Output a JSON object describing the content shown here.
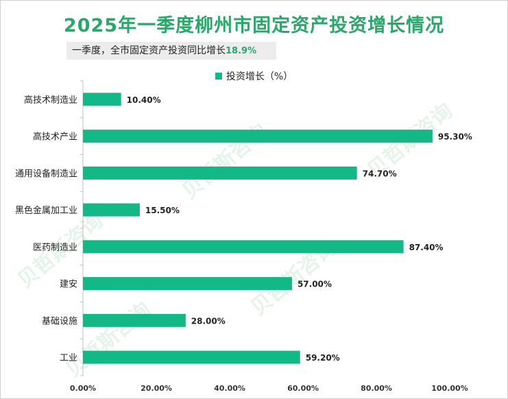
{
  "title": "2025年一季度柳州市固定资产投资增长情况",
  "subtitle": {
    "text": "一季度，全市固定资产投资同比增长",
    "value": "18.9%"
  },
  "watermark": "贝哲斯咨询",
  "colors": {
    "bar": "#12b886",
    "title": "#2aa86a",
    "axis": "#bfbfbf"
  },
  "chart_data": {
    "type": "bar",
    "orientation": "horizontal",
    "categories": [
      "高技术制造业",
      "高技术产业",
      "通用设备制造业",
      "黑色金属加工业",
      "医药制造业",
      "建安",
      "基础设施",
      "工业"
    ],
    "series": [
      {
        "name": "投资增长（%）",
        "values": [
          10.4,
          95.3,
          74.7,
          15.5,
          87.4,
          57.0,
          28.0,
          59.2
        ],
        "labels": [
          "10.40%",
          "95.30%",
          "74.70%",
          "15.50%",
          "87.40%",
          "57.00%",
          "28.00%",
          "59.20%"
        ]
      }
    ],
    "xlim": [
      0,
      100
    ],
    "xticks": [
      "0.00%",
      "20.00%",
      "40.00%",
      "60.00%",
      "80.00%",
      "100.00%"
    ],
    "legend": "top-center",
    "grid": false
  }
}
